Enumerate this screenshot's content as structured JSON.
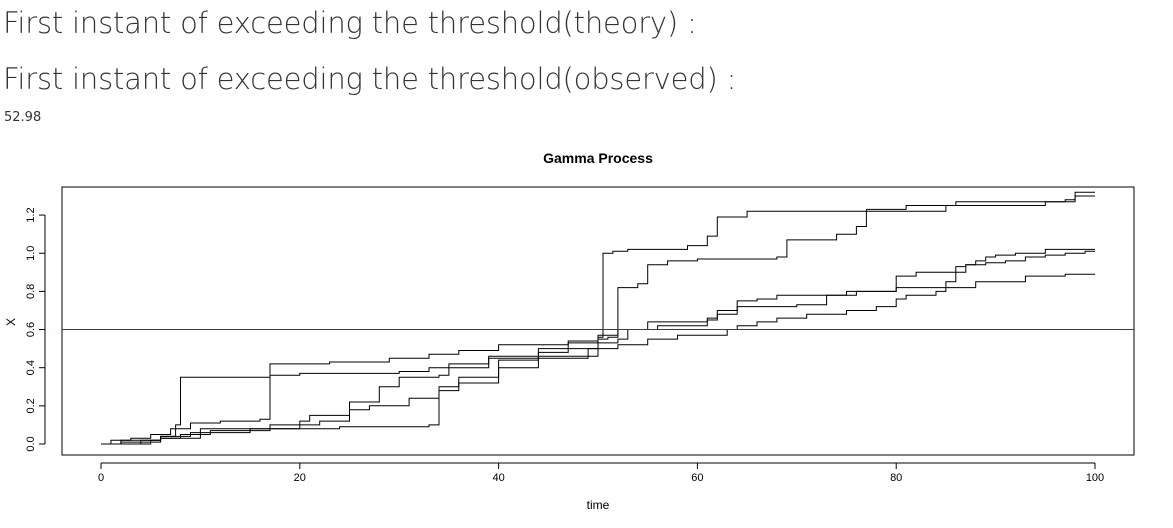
{
  "header": {
    "theory_label": "First instant of exceeding the threshold(theory) :",
    "observed_label": "First instant of exceeding the threshold(observed) :",
    "observed_value": "52.98"
  },
  "chart_data": {
    "type": "line",
    "step": true,
    "title": "Gamma Process",
    "xlabel": "time",
    "ylabel": "X",
    "xlim": [
      0,
      100
    ],
    "ylim": [
      0.0,
      1.3
    ],
    "xticks": [
      "0",
      "20",
      "40",
      "60",
      "80",
      "100"
    ],
    "yticks": [
      "0.0",
      "0.2",
      "0.4",
      "0.6",
      "0.8",
      "1.0",
      "1.2"
    ],
    "threshold": {
      "value": 0.6,
      "color": "#cc0000"
    },
    "series_color": "#000000",
    "series": [
      {
        "points": [
          [
            0,
            0.0
          ],
          [
            2,
            0.02
          ],
          [
            6,
            0.04
          ],
          [
            7.5,
            0.1
          ],
          [
            8,
            0.35
          ],
          [
            17,
            0.36
          ],
          [
            20,
            0.37
          ],
          [
            30,
            0.38
          ],
          [
            33,
            0.4
          ],
          [
            39,
            0.45
          ],
          [
            44,
            0.5
          ],
          [
            50,
            0.56
          ],
          [
            50.5,
            1.0
          ],
          [
            51.5,
            1.01
          ],
          [
            53,
            1.02
          ],
          [
            59,
            1.04
          ],
          [
            61,
            1.09
          ],
          [
            62,
            1.19
          ],
          [
            65,
            1.22
          ],
          [
            85,
            1.25
          ],
          [
            86,
            1.27
          ],
          [
            98,
            1.32
          ],
          [
            100,
            1.32
          ]
        ]
      },
      {
        "points": [
          [
            0,
            0.0
          ],
          [
            1,
            0.02
          ],
          [
            3,
            0.03
          ],
          [
            5,
            0.05
          ],
          [
            7,
            0.08
          ],
          [
            9,
            0.11
          ],
          [
            12,
            0.12
          ],
          [
            16,
            0.13
          ],
          [
            17,
            0.42
          ],
          [
            23,
            0.43
          ],
          [
            29,
            0.45
          ],
          [
            33,
            0.47
          ],
          [
            36,
            0.49
          ],
          [
            40,
            0.52
          ],
          [
            47,
            0.54
          ],
          [
            50,
            0.57
          ],
          [
            52,
            0.82
          ],
          [
            54,
            0.84
          ],
          [
            55,
            0.94
          ],
          [
            57,
            0.96
          ],
          [
            60,
            0.97
          ],
          [
            68,
            0.98
          ],
          [
            69,
            1.07
          ],
          [
            74,
            1.1
          ],
          [
            76,
            1.14
          ],
          [
            77,
            1.23
          ],
          [
            80,
            1.23
          ],
          [
            81,
            1.25
          ],
          [
            95,
            1.27
          ],
          [
            97,
            1.28
          ],
          [
            98,
            1.3
          ],
          [
            100,
            1.3
          ]
        ]
      },
      {
        "points": [
          [
            0,
            0.0
          ],
          [
            4,
            0.02
          ],
          [
            6,
            0.03
          ],
          [
            10,
            0.08
          ],
          [
            17,
            0.1
          ],
          [
            20,
            0.12
          ],
          [
            21,
            0.15
          ],
          [
            25,
            0.22
          ],
          [
            28,
            0.3
          ],
          [
            30,
            0.35
          ],
          [
            34,
            0.36
          ],
          [
            35,
            0.42
          ],
          [
            39,
            0.46
          ],
          [
            44,
            0.48
          ],
          [
            47,
            0.53
          ],
          [
            52,
            0.55
          ],
          [
            53,
            0.6
          ],
          [
            56,
            0.62
          ],
          [
            61,
            0.65
          ],
          [
            62,
            0.68
          ],
          [
            64,
            0.75
          ],
          [
            66,
            0.76
          ],
          [
            68,
            0.78
          ],
          [
            75,
            0.8
          ],
          [
            80,
            0.82
          ],
          [
            88,
            0.85
          ],
          [
            93,
            0.88
          ],
          [
            97,
            0.89
          ],
          [
            100,
            0.89
          ]
        ]
      },
      {
        "points": [
          [
            0,
            0.0
          ],
          [
            2,
            0.01
          ],
          [
            6,
            0.03
          ],
          [
            8,
            0.05
          ],
          [
            11,
            0.07
          ],
          [
            17,
            0.08
          ],
          [
            24,
            0.09
          ],
          [
            33,
            0.1
          ],
          [
            34,
            0.3
          ],
          [
            36,
            0.32
          ],
          [
            40,
            0.44
          ],
          [
            44,
            0.46
          ],
          [
            50,
            0.55
          ],
          [
            51,
            0.56
          ],
          [
            52,
            0.6
          ],
          [
            55,
            0.64
          ],
          [
            61,
            0.66
          ],
          [
            62,
            0.7
          ],
          [
            64,
            0.72
          ],
          [
            70,
            0.73
          ],
          [
            73,
            0.78
          ],
          [
            76,
            0.8
          ],
          [
            80,
            0.88
          ],
          [
            82,
            0.9
          ],
          [
            86,
            0.93
          ],
          [
            87,
            0.94
          ],
          [
            89,
            0.95
          ],
          [
            91,
            0.96
          ],
          [
            93,
            0.98
          ],
          [
            95,
            0.99
          ],
          [
            97,
            1.0
          ],
          [
            99,
            1.01
          ],
          [
            100,
            1.01
          ]
        ]
      },
      {
        "points": [
          [
            0,
            0.0
          ],
          [
            5,
            0.02
          ],
          [
            6,
            0.04
          ],
          [
            9,
            0.06
          ],
          [
            15,
            0.08
          ],
          [
            20,
            0.1
          ],
          [
            22,
            0.12
          ],
          [
            25,
            0.18
          ],
          [
            27,
            0.2
          ],
          [
            31,
            0.24
          ],
          [
            34,
            0.28
          ],
          [
            36,
            0.35
          ],
          [
            40,
            0.4
          ],
          [
            44,
            0.45
          ],
          [
            49,
            0.5
          ],
          [
            52,
            0.52
          ],
          [
            55,
            0.55
          ],
          [
            58,
            0.57
          ],
          [
            63,
            0.6
          ],
          [
            64,
            0.62
          ],
          [
            66,
            0.64
          ],
          [
            68,
            0.66
          ],
          [
            71,
            0.68
          ],
          [
            75,
            0.7
          ],
          [
            78,
            0.72
          ],
          [
            80,
            0.76
          ],
          [
            81,
            0.78
          ],
          [
            84,
            0.8
          ],
          [
            85,
            0.85
          ],
          [
            86,
            0.9
          ],
          [
            87,
            0.94
          ],
          [
            88,
            0.96
          ],
          [
            89,
            0.98
          ],
          [
            90,
            0.99
          ],
          [
            92,
            1.0
          ],
          [
            95,
            1.02
          ],
          [
            100,
            1.02
          ]
        ]
      }
    ]
  }
}
